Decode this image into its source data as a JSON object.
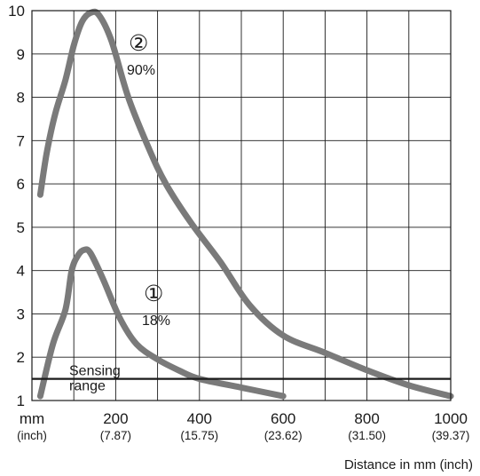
{
  "chart_data": {
    "type": "line",
    "title": "",
    "xlabel": "Distance in mm (inch)",
    "ylabel": "",
    "xlim": [
      0,
      1000
    ],
    "ylim": [
      1,
      10
    ],
    "x_grid": [
      0,
      100,
      200,
      300,
      400,
      500,
      600,
      700,
      800,
      900,
      1000
    ],
    "y_ticks": [
      1,
      2,
      3,
      4,
      5,
      6,
      7,
      8,
      9,
      10
    ],
    "x_ticks": [
      {
        "mm": "200",
        "inch": "(7.87)",
        "x": 200
      },
      {
        "mm": "400",
        "inch": "(15.75)",
        "x": 400
      },
      {
        "mm": "600",
        "inch": "(23.62)",
        "x": 600
      },
      {
        "mm": "800",
        "inch": "(31.50)",
        "x": 800
      },
      {
        "mm": "1000",
        "inch": "(39.37)",
        "x": 1000
      }
    ],
    "unit_label": {
      "mm": "mm",
      "inch": "(inch)"
    },
    "grid": true,
    "threshold": {
      "y": 1.5,
      "label_line1": "Sensing",
      "label_line2": "range"
    },
    "series": [
      {
        "marker": "①",
        "label": "18%",
        "points": [
          [
            20,
            1.1
          ],
          [
            50,
            2.3
          ],
          [
            80,
            3.1
          ],
          [
            95,
            4.0
          ],
          [
            110,
            4.35
          ],
          [
            125,
            4.48
          ],
          [
            140,
            4.4
          ],
          [
            170,
            3.8
          ],
          [
            210,
            2.9
          ],
          [
            250,
            2.3
          ],
          [
            300,
            1.95
          ],
          [
            350,
            1.7
          ],
          [
            400,
            1.5
          ],
          [
            500,
            1.3
          ],
          [
            600,
            1.1
          ]
        ]
      },
      {
        "marker": "②",
        "label": "90%",
        "points": [
          [
            20,
            5.75
          ],
          [
            35,
            6.7
          ],
          [
            55,
            7.6
          ],
          [
            80,
            8.4
          ],
          [
            100,
            9.2
          ],
          [
            120,
            9.75
          ],
          [
            140,
            9.95
          ],
          [
            160,
            9.9
          ],
          [
            190,
            9.3
          ],
          [
            230,
            8.0
          ],
          [
            280,
            6.8
          ],
          [
            320,
            6.0
          ],
          [
            380,
            5.1
          ],
          [
            450,
            4.2
          ],
          [
            520,
            3.2
          ],
          [
            600,
            2.5
          ],
          [
            700,
            2.1
          ],
          [
            800,
            1.7
          ],
          [
            900,
            1.35
          ],
          [
            1000,
            1.1
          ]
        ]
      }
    ]
  },
  "colors": {
    "curve": "#7a7a7a",
    "grid": "#1a1a1a",
    "background": "#ffffff"
  }
}
